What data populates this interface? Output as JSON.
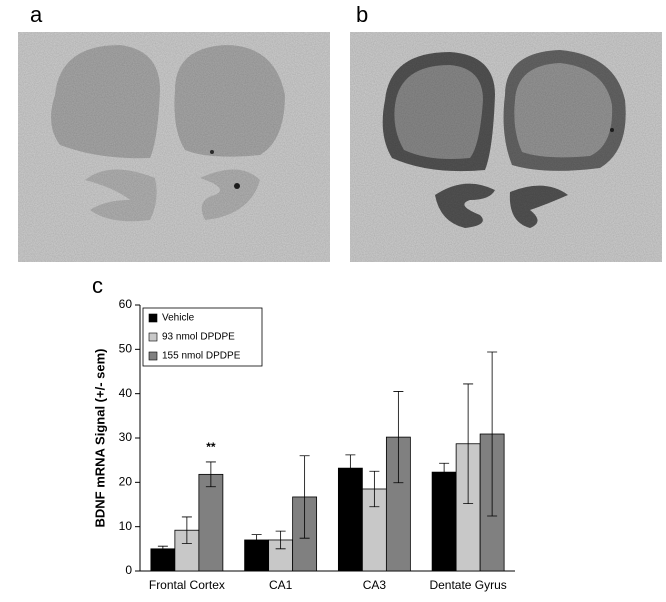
{
  "panel_labels": [
    "a",
    "b",
    "c"
  ],
  "chart_data": {
    "type": "bar",
    "ylabel": "BDNF mRNA Signal (+/- sem)",
    "categories": [
      "Frontal Cortex",
      "CA1",
      "CA3",
      "Dentate Gyrus"
    ],
    "series": [
      {
        "name": "Vehicle",
        "color": "#000000",
        "values": [
          5,
          7,
          23.2,
          22.3
        ],
        "errors": [
          0.6,
          1.2,
          3,
          2
        ]
      },
      {
        "name": "93 nmol DPDPE",
        "color": "#c8c8c8",
        "values": [
          9.2,
          7,
          18.5,
          28.7
        ],
        "errors": [
          3,
          2,
          4,
          13.5
        ]
      },
      {
        "name": "155 nmol DPDPE",
        "color": "#808080",
        "values": [
          21.8,
          16.7,
          30.2,
          30.9
        ],
        "errors": [
          2.8,
          9.3,
          10.3,
          18.5
        ]
      }
    ],
    "annotation": "**",
    "ylim": [
      0,
      60
    ],
    "yticks": [
      0,
      10,
      20,
      30,
      40,
      50,
      60
    ],
    "legend": "upper-left"
  }
}
